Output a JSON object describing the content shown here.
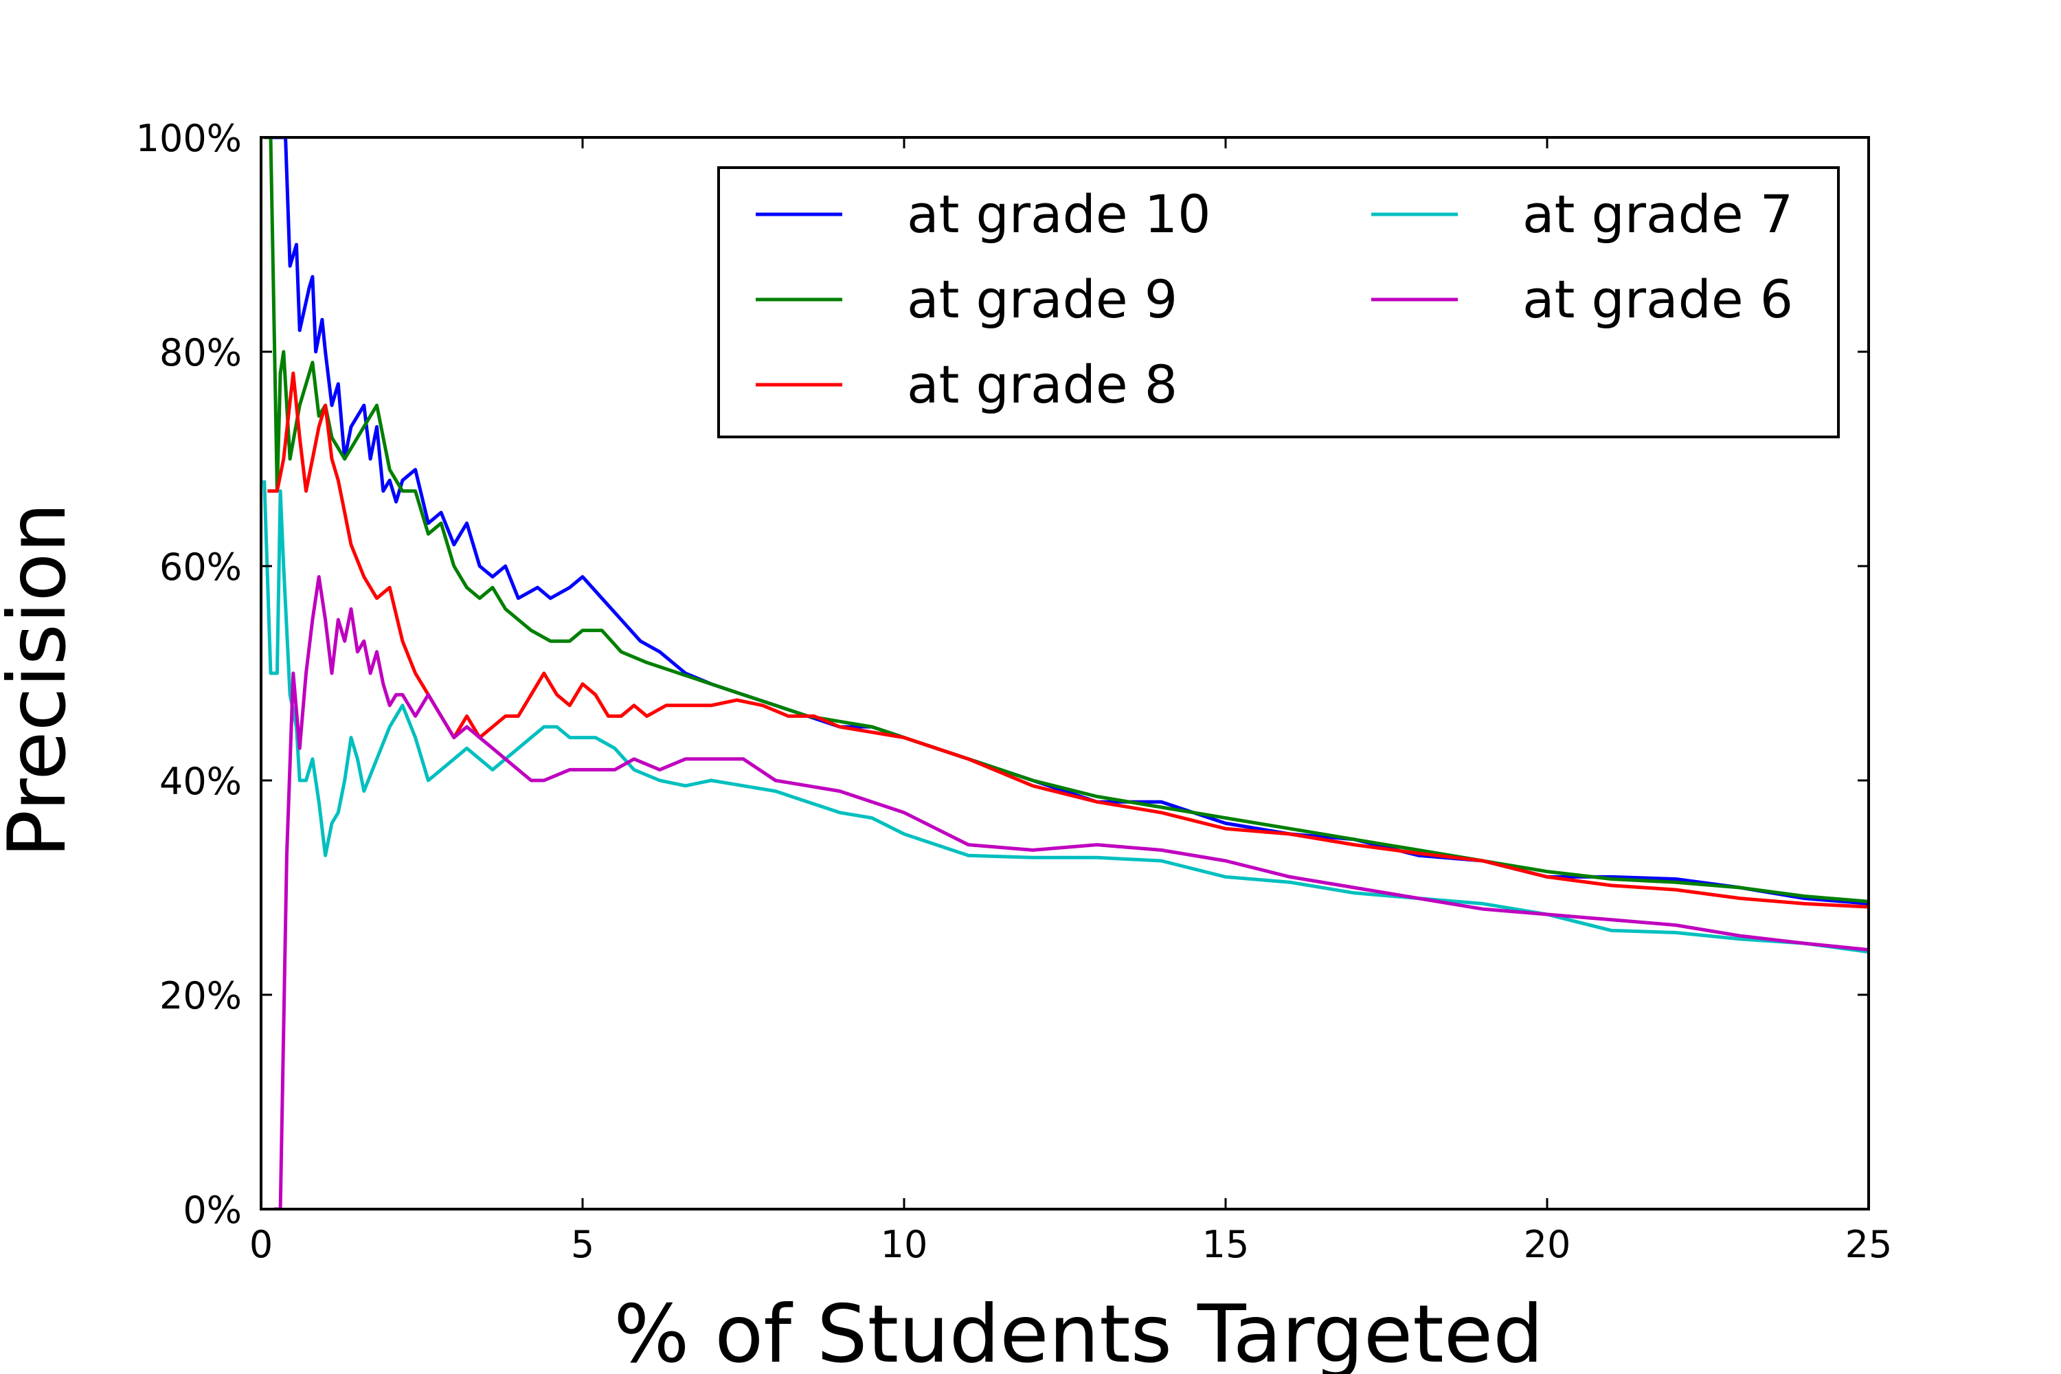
{
  "chart_data": {
    "type": "line",
    "title": "",
    "xlabel": "% of Students Targeted",
    "ylabel": "Precision",
    "xlim": [
      0,
      25
    ],
    "ylim": [
      0,
      100
    ],
    "xticks": [
      0,
      5,
      10,
      15,
      20,
      25
    ],
    "xtick_labels": [
      "0",
      "5",
      "10",
      "15",
      "20",
      "25"
    ],
    "yticks": [
      0,
      20,
      40,
      60,
      80,
      100
    ],
    "ytick_labels": [
      "0%",
      "20%",
      "40%",
      "60%",
      "80%",
      "100%"
    ],
    "grid": false,
    "legend": {
      "position": "top-right",
      "columns": 2,
      "entries": [
        "at grade 10",
        "at grade 9",
        "at grade 8",
        "at grade 7",
        "at grade 6"
      ]
    },
    "series": [
      {
        "name": "at grade 10",
        "color": "#0000ff",
        "points": [
          [
            0.1,
            100
          ],
          [
            0.2,
            100
          ],
          [
            0.3,
            100
          ],
          [
            0.38,
            100
          ],
          [
            0.45,
            88
          ],
          [
            0.55,
            90
          ],
          [
            0.6,
            82
          ],
          [
            0.75,
            86
          ],
          [
            0.8,
            87
          ],
          [
            0.85,
            80
          ],
          [
            0.95,
            83
          ],
          [
            1.0,
            80
          ],
          [
            1.1,
            75
          ],
          [
            1.2,
            77
          ],
          [
            1.3,
            70
          ],
          [
            1.4,
            73
          ],
          [
            1.6,
            75
          ],
          [
            1.7,
            70
          ],
          [
            1.8,
            73
          ],
          [
            1.9,
            67
          ],
          [
            2.0,
            68
          ],
          [
            2.1,
            66
          ],
          [
            2.2,
            68
          ],
          [
            2.4,
            69
          ],
          [
            2.6,
            64
          ],
          [
            2.8,
            65
          ],
          [
            3.0,
            62
          ],
          [
            3.2,
            64
          ],
          [
            3.4,
            60
          ],
          [
            3.6,
            59
          ],
          [
            3.8,
            60
          ],
          [
            4.0,
            57
          ],
          [
            4.3,
            58
          ],
          [
            4.5,
            57
          ],
          [
            4.8,
            58
          ],
          [
            5.0,
            59
          ],
          [
            5.3,
            57
          ],
          [
            5.6,
            55
          ],
          [
            5.9,
            53
          ],
          [
            6.2,
            52
          ],
          [
            6.6,
            50
          ],
          [
            7.0,
            49
          ],
          [
            7.5,
            48
          ],
          [
            8.0,
            47
          ],
          [
            8.5,
            46
          ],
          [
            9.0,
            45
          ],
          [
            9.5,
            45
          ],
          [
            10.0,
            44
          ],
          [
            11.0,
            42
          ],
          [
            12.0,
            40
          ],
          [
            13.0,
            38
          ],
          [
            14.0,
            38
          ],
          [
            15.0,
            36
          ],
          [
            16.0,
            35
          ],
          [
            17.0,
            34.5
          ],
          [
            18.0,
            33
          ],
          [
            19.0,
            32.5
          ],
          [
            20.0,
            31
          ],
          [
            21.0,
            31
          ],
          [
            22.0,
            30.8
          ],
          [
            23.0,
            30
          ],
          [
            24.0,
            29
          ],
          [
            25.0,
            28.5
          ]
        ]
      },
      {
        "name": "at grade 9",
        "color": "#007f00",
        "points": [
          [
            0.05,
            100
          ],
          [
            0.15,
            100
          ],
          [
            0.25,
            67
          ],
          [
            0.3,
            78
          ],
          [
            0.35,
            80
          ],
          [
            0.45,
            70
          ],
          [
            0.6,
            75
          ],
          [
            0.8,
            79
          ],
          [
            0.9,
            74
          ],
          [
            1.0,
            75
          ],
          [
            1.1,
            72
          ],
          [
            1.3,
            70
          ],
          [
            1.5,
            72
          ],
          [
            1.7,
            74
          ],
          [
            1.8,
            75
          ],
          [
            1.9,
            72
          ],
          [
            2.0,
            69
          ],
          [
            2.2,
            67
          ],
          [
            2.4,
            67
          ],
          [
            2.6,
            63
          ],
          [
            2.8,
            64
          ],
          [
            3.0,
            60
          ],
          [
            3.2,
            58
          ],
          [
            3.4,
            57
          ],
          [
            3.6,
            58
          ],
          [
            3.8,
            56
          ],
          [
            4.0,
            55
          ],
          [
            4.2,
            54
          ],
          [
            4.5,
            53
          ],
          [
            4.8,
            53
          ],
          [
            5.0,
            54
          ],
          [
            5.3,
            54
          ],
          [
            5.6,
            52
          ],
          [
            6.0,
            51
          ],
          [
            6.5,
            50
          ],
          [
            7.0,
            49
          ],
          [
            7.5,
            48
          ],
          [
            8.0,
            47
          ],
          [
            8.5,
            46
          ],
          [
            9.0,
            45.5
          ],
          [
            9.5,
            45
          ],
          [
            10.0,
            44
          ],
          [
            11.0,
            42
          ],
          [
            12.0,
            40
          ],
          [
            13.0,
            38.5
          ],
          [
            14.0,
            37.5
          ],
          [
            15.0,
            36.5
          ],
          [
            16.0,
            35.5
          ],
          [
            17.0,
            34.5
          ],
          [
            18.0,
            33.5
          ],
          [
            19.0,
            32.5
          ],
          [
            20.0,
            31.5
          ],
          [
            21.0,
            30.8
          ],
          [
            22.0,
            30.5
          ],
          [
            23.0,
            30
          ],
          [
            24.0,
            29.2
          ],
          [
            25.0,
            28.7
          ]
        ]
      },
      {
        "name": "at grade 8",
        "color": "#ff0000",
        "points": [
          [
            0.1,
            67
          ],
          [
            0.25,
            67
          ],
          [
            0.35,
            70
          ],
          [
            0.5,
            78
          ],
          [
            0.6,
            72
          ],
          [
            0.7,
            67
          ],
          [
            0.8,
            70
          ],
          [
            0.9,
            73
          ],
          [
            1.0,
            75
          ],
          [
            1.1,
            70
          ],
          [
            1.2,
            68
          ],
          [
            1.3,
            65
          ],
          [
            1.4,
            62
          ],
          [
            1.6,
            59
          ],
          [
            1.8,
            57
          ],
          [
            2.0,
            58
          ],
          [
            2.2,
            53
          ],
          [
            2.4,
            50
          ],
          [
            2.6,
            48
          ],
          [
            2.8,
            46
          ],
          [
            3.0,
            44
          ],
          [
            3.2,
            46
          ],
          [
            3.4,
            44
          ],
          [
            3.6,
            45
          ],
          [
            3.8,
            46
          ],
          [
            4.0,
            46
          ],
          [
            4.2,
            48
          ],
          [
            4.4,
            50
          ],
          [
            4.6,
            48
          ],
          [
            4.8,
            47
          ],
          [
            5.0,
            49
          ],
          [
            5.2,
            48
          ],
          [
            5.4,
            46
          ],
          [
            5.6,
            46
          ],
          [
            5.8,
            47
          ],
          [
            6.0,
            46
          ],
          [
            6.3,
            47
          ],
          [
            6.6,
            47
          ],
          [
            7.0,
            47
          ],
          [
            7.4,
            47.5
          ],
          [
            7.8,
            47
          ],
          [
            8.2,
            46
          ],
          [
            8.6,
            46
          ],
          [
            9.0,
            45
          ],
          [
            10.0,
            44
          ],
          [
            11.0,
            42
          ],
          [
            12.0,
            39.5
          ],
          [
            13.0,
            38
          ],
          [
            14.0,
            37
          ],
          [
            15.0,
            35.5
          ],
          [
            16.0,
            35
          ],
          [
            17.0,
            34
          ],
          [
            18.0,
            33.2
          ],
          [
            19.0,
            32.5
          ],
          [
            20.0,
            31
          ],
          [
            21.0,
            30.2
          ],
          [
            22.0,
            29.8
          ],
          [
            23.0,
            29
          ],
          [
            24.0,
            28.5
          ],
          [
            25.0,
            28.2
          ]
        ]
      },
      {
        "name": "at grade 7",
        "color": "#00bfbf",
        "points": [
          [
            0.05,
            68
          ],
          [
            0.15,
            50
          ],
          [
            0.25,
            50
          ],
          [
            0.3,
            67
          ],
          [
            0.35,
            60
          ],
          [
            0.45,
            48
          ],
          [
            0.55,
            45
          ],
          [
            0.6,
            40
          ],
          [
            0.7,
            40
          ],
          [
            0.8,
            42
          ],
          [
            0.9,
            38
          ],
          [
            1.0,
            33
          ],
          [
            1.1,
            36
          ],
          [
            1.2,
            37
          ],
          [
            1.3,
            40
          ],
          [
            1.4,
            44
          ],
          [
            1.5,
            42
          ],
          [
            1.6,
            39
          ],
          [
            1.8,
            42
          ],
          [
            2.0,
            45
          ],
          [
            2.2,
            47
          ],
          [
            2.4,
            44
          ],
          [
            2.6,
            40
          ],
          [
            2.8,
            41
          ],
          [
            3.0,
            42
          ],
          [
            3.2,
            43
          ],
          [
            3.4,
            42
          ],
          [
            3.6,
            41
          ],
          [
            3.8,
            42
          ],
          [
            4.0,
            43
          ],
          [
            4.2,
            44
          ],
          [
            4.4,
            45
          ],
          [
            4.6,
            45
          ],
          [
            4.8,
            44
          ],
          [
            5.0,
            44
          ],
          [
            5.2,
            44
          ],
          [
            5.5,
            43
          ],
          [
            5.8,
            41
          ],
          [
            6.2,
            40
          ],
          [
            6.6,
            39.5
          ],
          [
            7.0,
            40
          ],
          [
            7.5,
            39.5
          ],
          [
            8.0,
            39
          ],
          [
            8.5,
            38
          ],
          [
            9.0,
            37
          ],
          [
            9.5,
            36.5
          ],
          [
            10.0,
            35
          ],
          [
            11.0,
            33
          ],
          [
            12.0,
            32.8
          ],
          [
            13.0,
            32.8
          ],
          [
            14.0,
            32.5
          ],
          [
            15.0,
            31
          ],
          [
            16.0,
            30.5
          ],
          [
            17.0,
            29.5
          ],
          [
            18.0,
            29
          ],
          [
            19.0,
            28.5
          ],
          [
            20.0,
            27.5
          ],
          [
            21.0,
            26
          ],
          [
            22.0,
            25.8
          ],
          [
            23.0,
            25.2
          ],
          [
            24.0,
            24.8
          ],
          [
            25.0,
            24
          ]
        ]
      },
      {
        "name": "at grade 6",
        "color": "#bf00bf",
        "points": [
          [
            0.2,
            0
          ],
          [
            0.3,
            0
          ],
          [
            0.4,
            33
          ],
          [
            0.5,
            50
          ],
          [
            0.6,
            43
          ],
          [
            0.7,
            50
          ],
          [
            0.8,
            55
          ],
          [
            0.9,
            59
          ],
          [
            1.0,
            55
          ],
          [
            1.1,
            50
          ],
          [
            1.2,
            55
          ],
          [
            1.3,
            53
          ],
          [
            1.4,
            56
          ],
          [
            1.5,
            52
          ],
          [
            1.6,
            53
          ],
          [
            1.7,
            50
          ],
          [
            1.8,
            52
          ],
          [
            1.9,
            49
          ],
          [
            2.0,
            47
          ],
          [
            2.1,
            48
          ],
          [
            2.2,
            48
          ],
          [
            2.4,
            46
          ],
          [
            2.6,
            48
          ],
          [
            2.8,
            46
          ],
          [
            3.0,
            44
          ],
          [
            3.2,
            45
          ],
          [
            3.4,
            44
          ],
          [
            3.6,
            43
          ],
          [
            3.8,
            42
          ],
          [
            4.0,
            41
          ],
          [
            4.2,
            40
          ],
          [
            4.4,
            40
          ],
          [
            4.6,
            40.5
          ],
          [
            4.8,
            41
          ],
          [
            5.0,
            41
          ],
          [
            5.2,
            41
          ],
          [
            5.5,
            41
          ],
          [
            5.8,
            42
          ],
          [
            6.2,
            41
          ],
          [
            6.6,
            42
          ],
          [
            7.0,
            42
          ],
          [
            7.5,
            42
          ],
          [
            8.0,
            40
          ],
          [
            8.5,
            39.5
          ],
          [
            9.0,
            39
          ],
          [
            9.5,
            38
          ],
          [
            10.0,
            37
          ],
          [
            11.0,
            34
          ],
          [
            12.0,
            33.5
          ],
          [
            13.0,
            34
          ],
          [
            14.0,
            33.5
          ],
          [
            15.0,
            32.5
          ],
          [
            16.0,
            31
          ],
          [
            17.0,
            30
          ],
          [
            18.0,
            29
          ],
          [
            19.0,
            28
          ],
          [
            20.0,
            27.5
          ],
          [
            21.0,
            27
          ],
          [
            22.0,
            26.5
          ],
          [
            23.0,
            25.5
          ],
          [
            24.0,
            24.8
          ],
          [
            25.0,
            24.2
          ]
        ]
      }
    ]
  }
}
